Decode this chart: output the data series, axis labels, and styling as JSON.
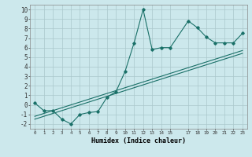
{
  "background_color": "#cce8ec",
  "grid_color": "#aac8cc",
  "line_color": "#1a7068",
  "xlabel": "Humidex (Indice chaleur)",
  "xlim": [
    -0.5,
    23.5
  ],
  "ylim": [
    -2.5,
    10.5
  ],
  "line1_x": [
    0,
    1,
    2,
    3,
    4,
    5,
    6,
    7,
    8,
    9,
    10,
    11,
    12,
    13,
    14,
    15,
    17,
    18,
    19,
    20,
    21,
    22,
    23
  ],
  "line1_y": [
    0.2,
    -0.6,
    -0.6,
    -1.5,
    -2.0,
    -1.0,
    -0.8,
    -0.7,
    0.8,
    1.4,
    3.5,
    6.5,
    10.0,
    5.8,
    6.0,
    6.0,
    8.8,
    8.1,
    7.1,
    6.5,
    6.5,
    6.5,
    7.5
  ],
  "line2_x": [
    0,
    1,
    2,
    3,
    4,
    5,
    6,
    7,
    8,
    9,
    10,
    11,
    12,
    13,
    14,
    15,
    17,
    18,
    19,
    20,
    21,
    22,
    23
  ],
  "line2_y": [
    -1.5,
    -1.2,
    -0.9,
    -0.6,
    -0.3,
    0.0,
    0.3,
    0.6,
    0.9,
    1.2,
    1.5,
    1.8,
    2.1,
    2.4,
    2.7,
    3.0,
    3.6,
    3.9,
    4.2,
    4.5,
    4.8,
    5.1,
    5.4
  ],
  "line3_x": [
    0,
    1,
    2,
    3,
    4,
    5,
    6,
    7,
    8,
    9,
    10,
    11,
    12,
    13,
    14,
    15,
    17,
    18,
    19,
    20,
    21,
    22,
    23
  ],
  "line3_y": [
    -1.2,
    -0.9,
    -0.6,
    -0.3,
    0.0,
    0.3,
    0.6,
    0.9,
    1.2,
    1.5,
    1.8,
    2.1,
    2.4,
    2.7,
    3.0,
    3.3,
    3.9,
    4.2,
    4.5,
    4.8,
    5.1,
    5.4,
    5.7
  ],
  "yticks": [
    -2,
    -1,
    0,
    1,
    2,
    3,
    4,
    5,
    6,
    7,
    8,
    9,
    10
  ],
  "xtick_vals": [
    0,
    1,
    2,
    3,
    4,
    5,
    6,
    7,
    8,
    9,
    10,
    11,
    12,
    13,
    14,
    15,
    17,
    18,
    19,
    20,
    21,
    22,
    23
  ]
}
